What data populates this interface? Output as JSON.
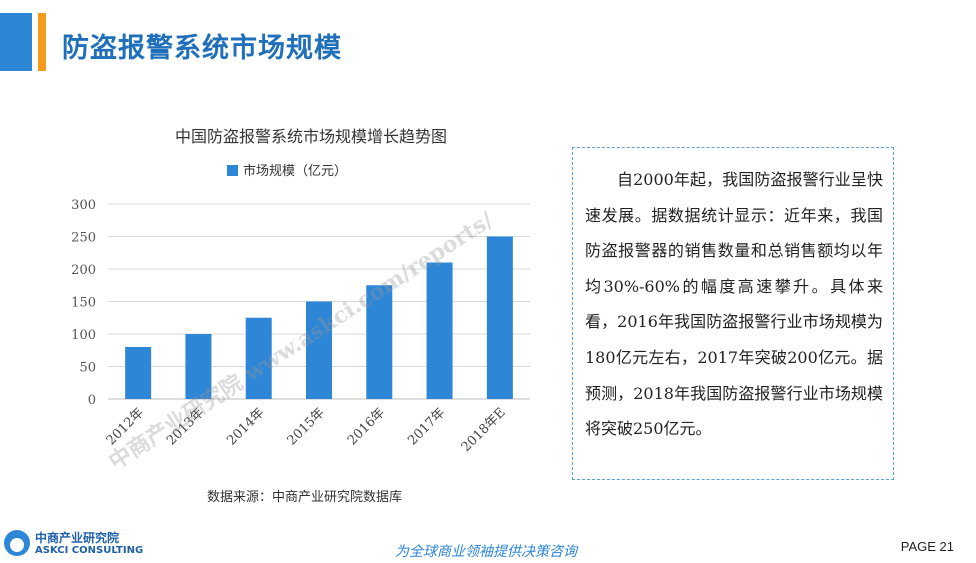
{
  "header": {
    "title": "防盗报警系统市场规模",
    "accent_blue": "#2e86d6",
    "accent_orange": "#f29b1d"
  },
  "chart_data": {
    "type": "bar",
    "title": "中国防盗报警系统市场规模增长趋势图",
    "categories": [
      "2012年",
      "2013年",
      "2014年",
      "2015年",
      "2016年",
      "2017年",
      "2018年E"
    ],
    "series": [
      {
        "name": "市场规模（亿元）",
        "values": [
          80,
          100,
          125,
          150,
          175,
          210,
          250
        ],
        "color": "#2e86d6"
      }
    ],
    "ylim": [
      0,
      300
    ],
    "yticks": [
      0,
      50,
      100,
      150,
      200,
      250,
      300
    ],
    "grid": true,
    "legend_position": "top",
    "watermark": "中商产业研究院 www.askci.com/reports/",
    "source": "数据来源：中商产业研究院数据库"
  },
  "textbox": {
    "content": "自2000年起，我国防盗报警行业呈快速发展。据数据统计显示：近年来，我国防盗报警器的销售数量和总销售额均以年均30%-60%的幅度高速攀升。具体来看，2016年我国防盗报警行业市场规模为180亿元左右，2017年突破200亿元。据预测，2018年我国防盗报警行业市场规模将突破250亿元。"
  },
  "footer": {
    "logo_cn": "中商产业研究院",
    "logo_en": "ASKCI CONSULTING",
    "slogan": "为全球商业领袖提供决策咨询",
    "page": "PAGE 21"
  }
}
